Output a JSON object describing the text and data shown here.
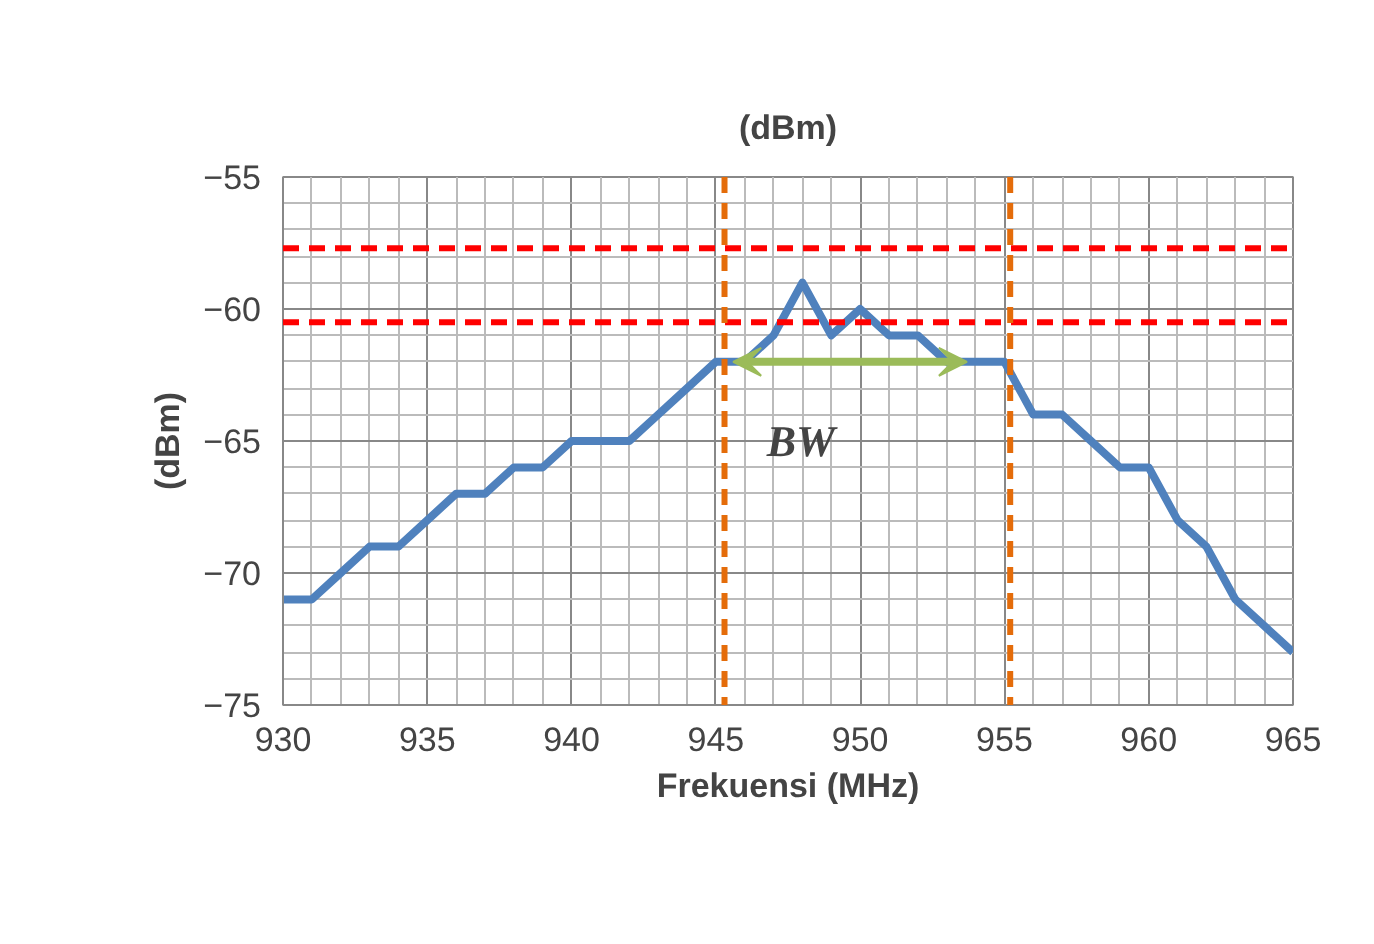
{
  "chart_data": {
    "type": "line",
    "title": "(dBm)",
    "xlabel": "Frekuensi (MHz)",
    "ylabel": "(dBm)",
    "x": [
      930,
      931,
      932,
      933,
      934,
      935,
      936,
      937,
      938,
      939,
      940,
      941,
      942,
      943,
      944,
      945,
      946,
      947,
      948,
      949,
      950,
      951,
      952,
      953,
      954,
      955,
      956,
      957,
      958,
      959,
      960,
      961,
      962,
      963,
      964,
      965
    ],
    "series": [
      {
        "color": "#4f81bd",
        "values": [
          -71,
          -71,
          -70,
          -69,
          -69,
          -68,
          -67,
          -67,
          -66,
          -66,
          -65,
          -65,
          -65,
          -64,
          -63,
          -62,
          -62,
          -61,
          -59,
          -61,
          -60,
          -61,
          -61,
          -62,
          -62,
          -62,
          -64,
          -64,
          -65,
          -66,
          -66,
          -68,
          -69,
          -71,
          -72,
          -73
        ]
      }
    ],
    "xlim": [
      930,
      965
    ],
    "ylim": [
      -75,
      -55
    ],
    "xticks": [
      930,
      935,
      940,
      945,
      950,
      955,
      960,
      965
    ],
    "yticks": [
      -75,
      -70,
      -65,
      -60,
      -55
    ],
    "grid": true,
    "marker": "none",
    "line_style": "solid",
    "ref_lines": [
      {
        "axis": "y",
        "value": -57.7,
        "color": "#ff0000",
        "line_style": "dashed"
      },
      {
        "axis": "y",
        "value": -60.5,
        "color": "#ff0000",
        "line_style": "dashed"
      },
      {
        "axis": "x",
        "value": 945.3,
        "color": "#e46c0a",
        "line_style": "dashed"
      },
      {
        "axis": "x",
        "value": 955.2,
        "color": "#e46c0a",
        "line_style": "dashed"
      }
    ],
    "annotations": [
      "BW"
    ]
  }
}
